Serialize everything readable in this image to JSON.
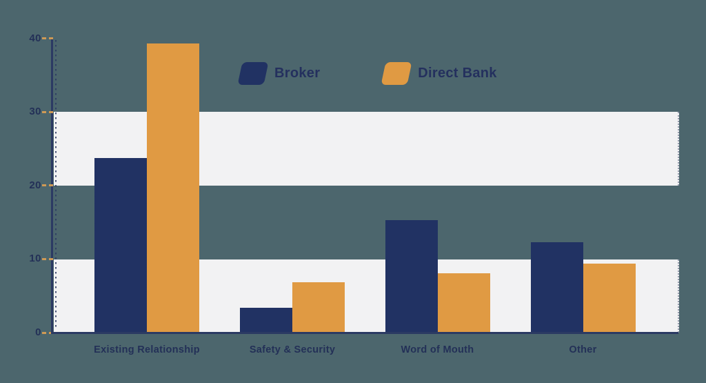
{
  "colors": {
    "background": "#4c666d",
    "band": "#f2f2f3",
    "broker_bar": "#213263",
    "direct_bank_bar": "#e09a43",
    "axis_line": "#2b3a63",
    "tick_dash": "#cf9a55",
    "label_text": "#233057"
  },
  "legend": {
    "items": [
      {
        "label": "Broker",
        "swatch": "broker-swatch",
        "color": "#213263"
      },
      {
        "label": "Direct Bank",
        "swatch": "direct-bank-swatch",
        "color": "#e09a43"
      }
    ]
  },
  "chart_data": {
    "type": "bar",
    "title": "",
    "xlabel": "",
    "ylabel": "",
    "categories": [
      "Existing Relationship",
      "Safety & Security",
      "Word of Mouth",
      "Other"
    ],
    "series": [
      {
        "name": "Broker",
        "color": "#213263",
        "values": [
          23.7,
          3.4,
          15.3,
          12.3
        ]
      },
      {
        "name": "Direct Bank",
        "color": "#e09a43",
        "values": [
          39.3,
          6.8,
          8.1,
          9.4
        ]
      }
    ],
    "y_ticks": [
      0,
      10,
      20,
      30,
      40
    ],
    "ylim": [
      0,
      40
    ],
    "legend_position": "top-center",
    "grid": "alternating horizontal bands (0-10 and 20-30 shaded light gray)"
  }
}
